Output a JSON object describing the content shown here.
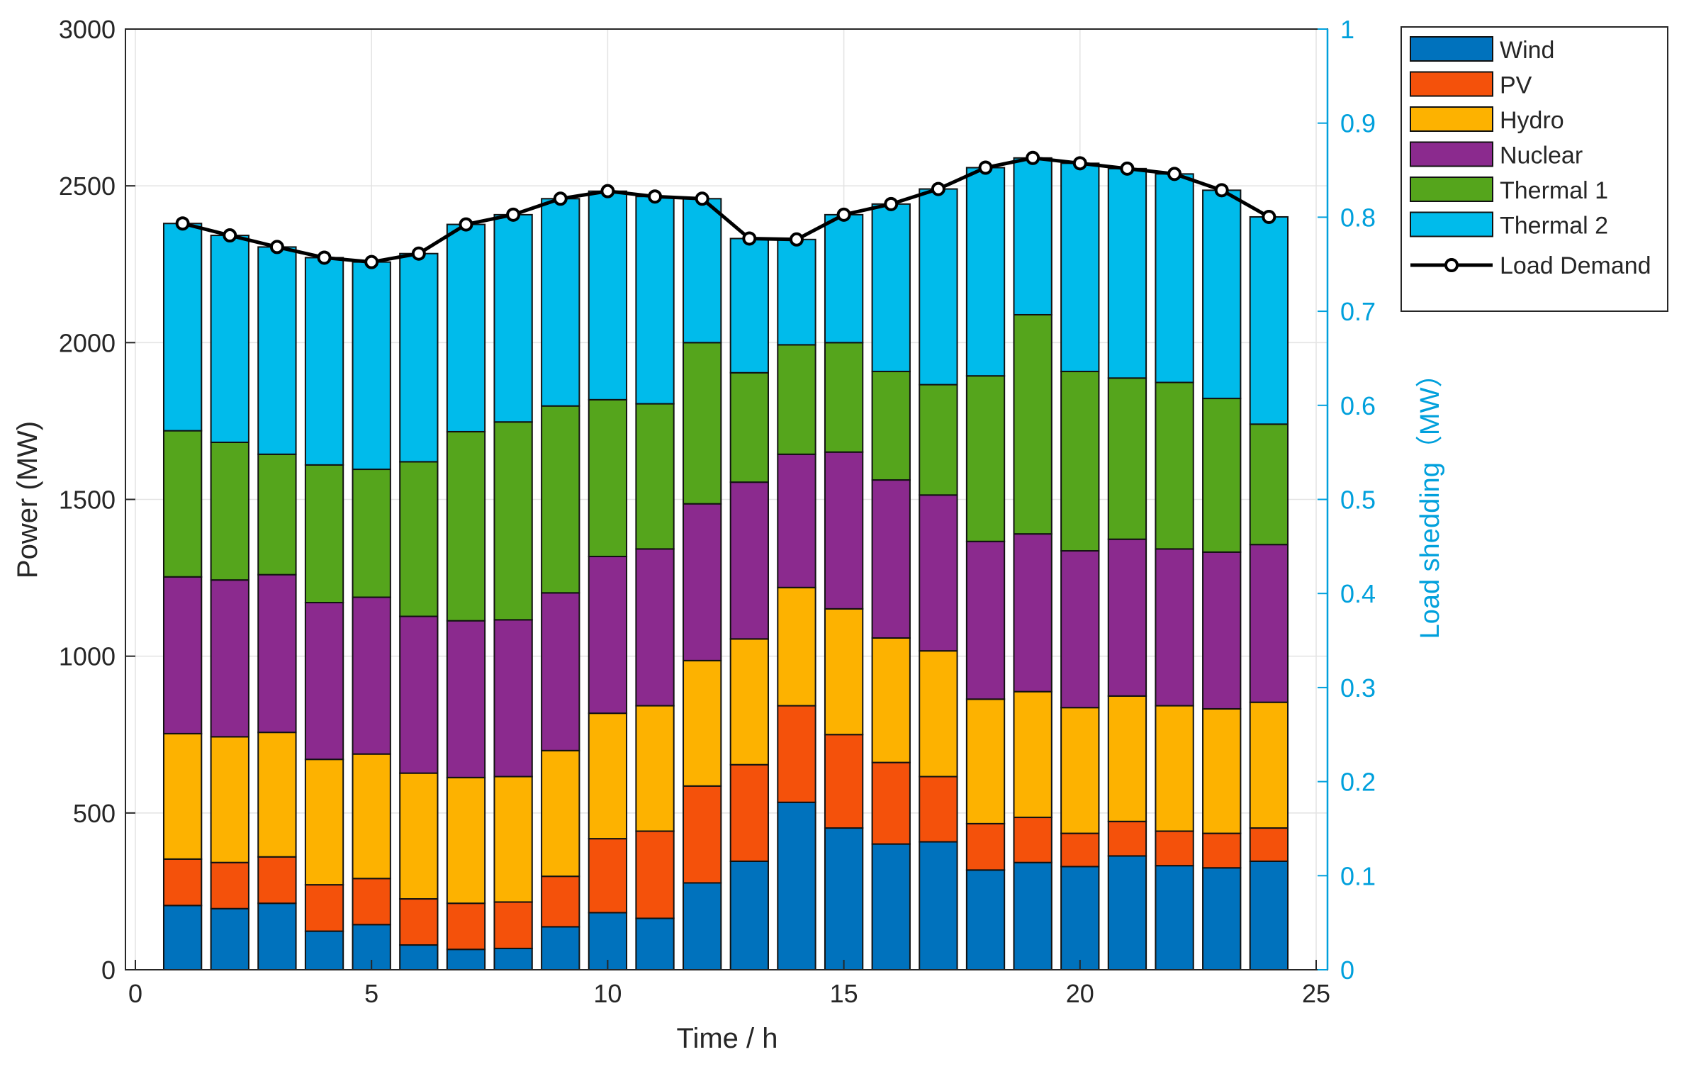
{
  "chart_data": {
    "type": "bar",
    "stacked": true,
    "xlabel": "Time / h",
    "ylabel": "Power (MW)",
    "y2label": "Load shedding（MW）",
    "xlim": [
      0,
      25
    ],
    "ylim": [
      0,
      3000
    ],
    "y2lim": [
      0,
      1
    ],
    "xticks": [
      "0",
      "5",
      "10",
      "15",
      "20",
      "25"
    ],
    "yticks": [
      "0",
      "500",
      "1000",
      "1500",
      "2000",
      "2500",
      "3000"
    ],
    "y2ticks": [
      "0",
      "0.1",
      "0.2",
      "0.3",
      "0.4",
      "0.5",
      "0.6",
      "0.7",
      "0.8",
      "0.9",
      "1"
    ],
    "grid": true,
    "legend_position": "outside-top-right",
    "x": [
      1,
      2,
      3,
      4,
      5,
      6,
      7,
      8,
      9,
      10,
      11,
      12,
      13,
      14,
      15,
      16,
      17,
      18,
      19,
      20,
      21,
      22,
      23,
      24
    ],
    "series": [
      {
        "name": "Wind",
        "color": "#0072BD",
        "values": [
          205,
          195,
          212,
          123,
          144,
          79,
          65,
          68,
          137,
          182,
          164,
          277,
          346,
          534,
          452,
          401,
          408,
          318,
          342,
          329,
          363,
          332,
          325,
          346
        ]
      },
      {
        "name": "PV",
        "color": "#F4510B",
        "values": [
          148,
          147,
          148,
          148,
          147,
          147,
          147,
          148,
          161,
          236,
          278,
          309,
          308,
          308,
          298,
          260,
          208,
          148,
          144,
          106,
          110,
          110,
          110,
          106
        ]
      },
      {
        "name": "Hydro",
        "color": "#FDB200",
        "values": [
          400,
          401,
          397,
          400,
          397,
          401,
          401,
          400,
          401,
          400,
          400,
          400,
          401,
          377,
          401,
          397,
          401,
          397,
          401,
          401,
          400,
          400,
          397,
          401
        ]
      },
      {
        "name": "Nuclear",
        "color": "#8B2A8E",
        "values": [
          500,
          500,
          503,
          500,
          500,
          500,
          500,
          500,
          503,
          500,
          500,
          500,
          500,
          425,
          500,
          504,
          497,
          503,
          503,
          500,
          500,
          500,
          500,
          503
        ]
      },
      {
        "name": "Thermal 1",
        "color": "#55A51C",
        "values": [
          466,
          439,
          384,
          439,
          408,
          493,
          603,
          631,
          596,
          500,
          463,
          514,
          349,
          349,
          349,
          346,
          352,
          528,
          699,
          572,
          514,
          531,
          490,
          384
        ]
      },
      {
        "name": "Thermal 2",
        "color": "#00BBEB",
        "values": [
          661,
          660,
          661,
          661,
          661,
          664,
          661,
          661,
          661,
          665,
          661,
          459,
          428,
          336,
          408,
          534,
          624,
          664,
          500,
          664,
          668,
          665,
          664,
          661
        ]
      }
    ],
    "line": {
      "name": "Load Demand",
      "color": "#000000",
      "values": [
        2380,
        2342,
        2305,
        2271,
        2257,
        2284,
        2377,
        2408,
        2459,
        2483,
        2466,
        2459,
        2332,
        2329,
        2408,
        2442,
        2490,
        2558,
        2589,
        2572,
        2555,
        2538,
        2486,
        2401
      ]
    }
  }
}
